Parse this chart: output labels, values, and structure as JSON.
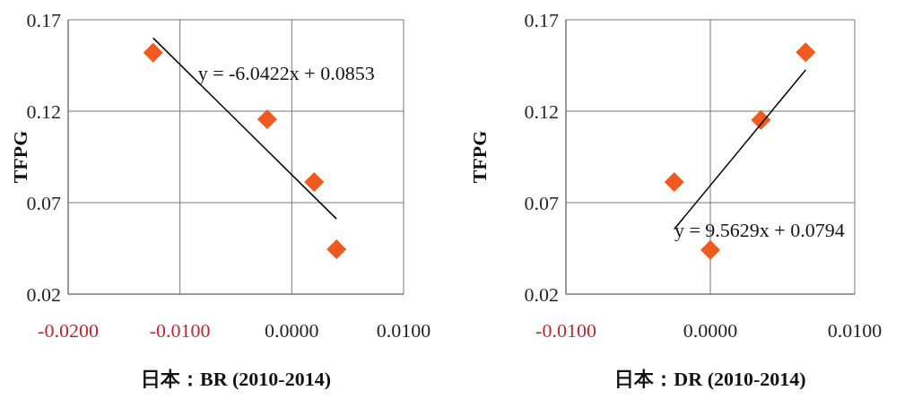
{
  "chart_data": [
    {
      "type": "scatter",
      "xlabel": "日本：BR (2010-2014)",
      "ylabel": "TFPG",
      "xlim": [
        -0.02,
        0.01
      ],
      "xticks": [
        {
          "value": -0.02,
          "label": "-0.0200"
        },
        {
          "value": -0.01,
          "label": "-0.0100"
        },
        {
          "value": 0,
          "label": "0.0000"
        },
        {
          "value": 0.01,
          "label": "0.0100"
        }
      ],
      "ylim": [
        0.02,
        0.17
      ],
      "yticks": [
        0.02,
        0.07,
        0.12,
        0.17
      ],
      "grid": true,
      "series": [
        {
          "color": "#f05a1e",
          "marker": "diamond",
          "x": [
            -0.0124,
            -0.0022,
            0.002,
            0.004
          ],
          "values": [
            0.152,
            0.1156,
            0.0813,
            0.0445
          ]
        },
        {
          "type": "line",
          "color": "#000000",
          "x": [
            -0.0124,
            0.004
          ],
          "values": [
            0.16,
            0.0611
          ]
        }
      ],
      "annotations": [
        {
          "text": "y = -6.0422x + 0.0853",
          "x": -0.0088,
          "y": 0.141
        }
      ]
    },
    {
      "type": "scatter",
      "xlabel": "日本：DR (2010-2014)",
      "ylabel": "TFPG",
      "xlim": [
        -0.01,
        0.01
      ],
      "xticks": [
        {
          "value": -0.01,
          "label": "-0.0100"
        },
        {
          "value": 0,
          "label": "0.0000"
        },
        {
          "value": 0.01,
          "label": "0.0100"
        }
      ],
      "ylim": [
        0.02,
        0.17
      ],
      "yticks": [
        0.02,
        0.07,
        0.12,
        0.17
      ],
      "grid": true,
      "series": [
        {
          "color": "#f05a1e",
          "marker": "diamond",
          "x": [
            -0.0025,
            0.0,
            0.0035,
            0.0066
          ],
          "values": [
            0.0813,
            0.0442,
            0.1152,
            0.1522
          ]
        },
        {
          "type": "line",
          "color": "#000000",
          "x": [
            -0.0025,
            0.0066
          ],
          "values": [
            0.0555,
            0.1425
          ]
        }
      ],
      "annotations": [
        {
          "text": "y = 9.5629x + 0.0794",
          "x": -0.0028,
          "y": 0.0553
        }
      ]
    }
  ]
}
